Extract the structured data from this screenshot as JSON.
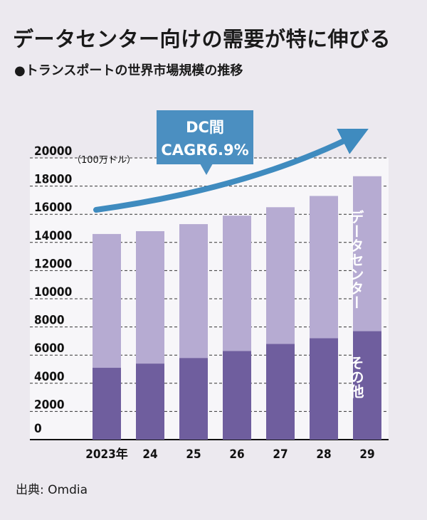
{
  "title": "データセンター向けの需要が特に伸びる",
  "subtitle": "●トランスポートの世界市場規模の推移",
  "source": "出典: Omdia",
  "callout": {
    "line1": "DC間",
    "line2": "CAGR6.9%"
  },
  "colors": {
    "background": "#ece9ef",
    "datacenter": "#b6abd2",
    "other": "#6f5e9e",
    "arrow": "#3f8bbf",
    "callout_bg": "#4b8fc1"
  },
  "chart_data": {
    "type": "bar",
    "stacked": true,
    "categories": [
      "2023年",
      "24",
      "25",
      "26",
      "27",
      "28",
      "29"
    ],
    "series": [
      {
        "name": "その他",
        "values": [
          5100,
          5400,
          5800,
          6300,
          6800,
          7200,
          7700
        ]
      },
      {
        "name": "データセンター",
        "values": [
          9500,
          9400,
          9500,
          9600,
          9700,
          10100,
          11000
        ]
      }
    ],
    "yticks": [
      "0",
      "2000",
      "4000",
      "6000",
      "8000",
      "10000",
      "12000",
      "14000",
      "16000",
      "18000",
      "20000"
    ],
    "yunit": "（100万ドル）",
    "ylim": [
      0,
      20000
    ],
    "grid": true,
    "annotation": "DC間 CAGR6.9%"
  }
}
